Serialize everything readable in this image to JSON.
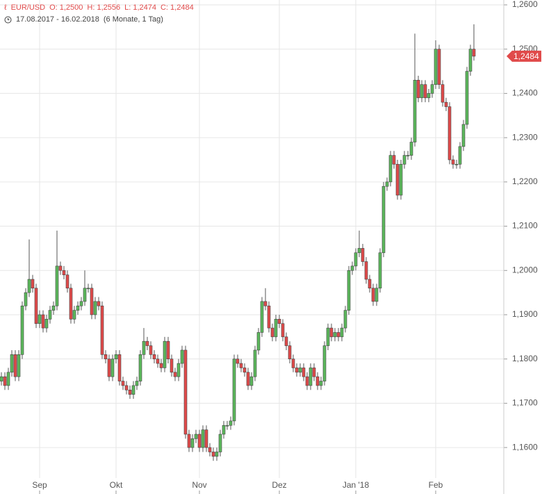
{
  "chart_data": {
    "type": "candlestick",
    "header": {
      "symbol": "EUR/USD",
      "fields": [
        "O: 1,2500",
        "H: 1,2556",
        "L: 1,2474",
        "C: 1,2484"
      ],
      "range": "17.08.2017 - 16.02.2018",
      "period": "(6 Monate, 1 Tag)"
    },
    "last_label": "1,2484",
    "up_color": "#5cb85c",
    "down_color": "#e04a4a",
    "ylim": [
      1.1495,
      1.2611
    ],
    "yticks": [
      {
        "value": 1.16,
        "label": "1,1600"
      },
      {
        "value": 1.17,
        "label": "1,1700"
      },
      {
        "value": 1.18,
        "label": "1,1800"
      },
      {
        "value": 1.19,
        "label": "1,1900"
      },
      {
        "value": 1.2,
        "label": "1,2000"
      },
      {
        "value": 1.21,
        "label": "1,2100"
      },
      {
        "value": 1.22,
        "label": "1,2200"
      },
      {
        "value": 1.23,
        "label": "1,2300"
      },
      {
        "value": 1.24,
        "label": "1,2400"
      },
      {
        "value": 1.25,
        "label": "1,2500"
      },
      {
        "value": 1.26,
        "label": "1,2600"
      }
    ],
    "xticks": [
      {
        "value": 11,
        "label": "Sep"
      },
      {
        "value": 33,
        "label": "Okt"
      },
      {
        "value": 57,
        "label": "Nov"
      },
      {
        "value": 80,
        "label": "Dez"
      },
      {
        "value": 102,
        "label": "Jan '18"
      },
      {
        "value": 125,
        "label": "Feb"
      }
    ],
    "grid": true,
    "open": [
      1.175,
      1.176,
      1.174,
      1.177,
      1.181,
      1.176,
      1.181,
      1.192,
      1.195,
      1.198,
      1.196,
      1.188,
      1.19,
      1.187,
      1.189,
      1.191,
      1.192,
      1.201,
      1.2,
      1.199,
      1.196,
      1.189,
      1.191,
      1.192,
      1.193,
      1.196,
      1.196,
      1.19,
      1.193,
      1.192,
      1.181,
      1.18,
      1.176,
      1.18,
      1.181,
      1.175,
      1.174,
      1.173,
      1.172,
      1.174,
      1.175,
      1.181,
      1.184,
      1.183,
      1.181,
      1.18,
      1.179,
      1.178,
      1.184,
      1.18,
      1.177,
      1.176,
      1.179,
      1.182,
      1.163,
      1.16,
      1.162,
      1.163,
      1.16,
      1.164,
      1.16,
      1.159,
      1.158,
      1.159,
      1.163,
      1.165,
      1.165,
      1.166,
      1.18,
      1.179,
      1.178,
      1.177,
      1.174,
      1.176,
      1.182,
      1.186,
      1.193,
      1.192,
      1.187,
      1.185,
      1.189,
      1.188,
      1.185,
      1.183,
      1.18,
      1.178,
      1.177,
      1.178,
      1.176,
      1.174,
      1.178,
      1.176,
      1.174,
      1.175,
      1.183,
      1.187,
      1.185,
      1.186,
      1.185,
      1.187,
      1.191,
      1.2,
      1.201,
      1.204,
      1.205,
      1.202,
      1.198,
      1.196,
      1.193,
      1.196,
      1.204,
      1.219,
      1.22,
      1.226,
      1.224,
      1.217,
      1.224,
      1.226,
      1.226,
      1.229,
      1.243,
      1.239,
      1.242,
      1.239,
      1.24,
      1.242,
      1.25,
      1.242,
      1.238,
      1.237,
      1.225,
      1.224,
      1.224,
      1.228,
      1.233,
      1.245,
      1.25
    ],
    "high": [
      1.177,
      1.177,
      1.178,
      1.182,
      1.182,
      1.182,
      1.193,
      1.196,
      1.207,
      1.199,
      1.197,
      1.191,
      1.191,
      1.19,
      1.192,
      1.193,
      1.209,
      1.202,
      1.201,
      1.2,
      1.197,
      1.192,
      1.193,
      1.194,
      1.2,
      1.197,
      1.197,
      1.194,
      1.194,
      1.193,
      1.182,
      1.181,
      1.181,
      1.182,
      1.182,
      1.176,
      1.175,
      1.174,
      1.175,
      1.176,
      1.182,
      1.187,
      1.185,
      1.184,
      1.182,
      1.181,
      1.18,
      1.185,
      1.185,
      1.181,
      1.178,
      1.18,
      1.183,
      1.183,
      1.164,
      1.163,
      1.164,
      1.164,
      1.165,
      1.165,
      1.161,
      1.16,
      1.16,
      1.164,
      1.166,
      1.166,
      1.167,
      1.181,
      1.181,
      1.18,
      1.179,
      1.178,
      1.177,
      1.183,
      1.187,
      1.194,
      1.196,
      1.193,
      1.188,
      1.19,
      1.19,
      1.189,
      1.186,
      1.184,
      1.181,
      1.179,
      1.179,
      1.179,
      1.177,
      1.179,
      1.179,
      1.177,
      1.176,
      1.184,
      1.188,
      1.188,
      1.187,
      1.187,
      1.188,
      1.192,
      1.201,
      1.202,
      1.205,
      1.209,
      1.206,
      1.203,
      1.199,
      1.197,
      1.197,
      1.205,
      1.22,
      1.221,
      1.227,
      1.227,
      1.225,
      1.225,
      1.227,
      1.227,
      1.23,
      1.2535,
      1.244,
      1.243,
      1.243,
      1.241,
      1.243,
      1.252,
      1.251,
      1.243,
      1.239,
      1.238,
      1.226,
      1.225,
      1.229,
      1.234,
      1.246,
      1.251,
      1.2556
    ],
    "low": [
      1.174,
      1.173,
      1.173,
      1.176,
      1.175,
      1.175,
      1.18,
      1.191,
      1.194,
      1.195,
      1.187,
      1.187,
      1.186,
      1.186,
      1.188,
      1.19,
      1.191,
      1.199,
      1.198,
      1.195,
      1.188,
      1.188,
      1.19,
      1.191,
      1.192,
      1.195,
      1.189,
      1.189,
      1.191,
      1.18,
      1.179,
      1.175,
      1.175,
      1.179,
      1.174,
      1.173,
      1.172,
      1.171,
      1.171,
      1.173,
      1.174,
      1.18,
      1.182,
      1.18,
      1.179,
      1.178,
      1.177,
      1.177,
      1.179,
      1.176,
      1.175,
      1.175,
      1.178,
      1.162,
      1.159,
      1.159,
      1.161,
      1.159,
      1.159,
      1.159,
      1.158,
      1.157,
      1.157,
      1.158,
      1.162,
      1.164,
      1.164,
      1.165,
      1.178,
      1.177,
      1.176,
      1.173,
      1.173,
      1.175,
      1.181,
      1.185,
      1.191,
      1.186,
      1.184,
      1.184,
      1.187,
      1.184,
      1.182,
      1.179,
      1.177,
      1.176,
      1.176,
      1.175,
      1.173,
      1.173,
      1.175,
      1.173,
      1.173,
      1.174,
      1.182,
      1.184,
      1.184,
      1.184,
      1.184,
      1.186,
      1.19,
      1.199,
      1.2,
      1.203,
      1.201,
      1.197,
      1.195,
      1.192,
      1.192,
      1.195,
      1.203,
      1.218,
      1.219,
      1.223,
      1.216,
      1.216,
      1.223,
      1.225,
      1.225,
      1.228,
      1.238,
      1.238,
      1.238,
      1.238,
      1.239,
      1.241,
      1.241,
      1.237,
      1.236,
      1.224,
      1.223,
      1.223,
      1.223,
      1.227,
      1.232,
      1.244,
      1.2474
    ],
    "close": [
      1.176,
      1.174,
      1.177,
      1.181,
      1.176,
      1.181,
      1.192,
      1.195,
      1.198,
      1.196,
      1.188,
      1.19,
      1.187,
      1.189,
      1.191,
      1.192,
      1.201,
      1.2,
      1.199,
      1.196,
      1.189,
      1.191,
      1.192,
      1.193,
      1.196,
      1.196,
      1.19,
      1.193,
      1.192,
      1.181,
      1.18,
      1.176,
      1.18,
      1.181,
      1.175,
      1.174,
      1.173,
      1.172,
      1.174,
      1.175,
      1.181,
      1.184,
      1.183,
      1.181,
      1.18,
      1.179,
      1.178,
      1.184,
      1.18,
      1.177,
      1.176,
      1.179,
      1.182,
      1.163,
      1.16,
      1.162,
      1.163,
      1.16,
      1.164,
      1.16,
      1.159,
      1.158,
      1.159,
      1.163,
      1.165,
      1.165,
      1.166,
      1.18,
      1.179,
      1.178,
      1.177,
      1.174,
      1.176,
      1.182,
      1.186,
      1.193,
      1.192,
      1.187,
      1.185,
      1.189,
      1.188,
      1.185,
      1.183,
      1.18,
      1.178,
      1.177,
      1.178,
      1.176,
      1.174,
      1.178,
      1.176,
      1.174,
      1.175,
      1.183,
      1.187,
      1.185,
      1.186,
      1.185,
      1.187,
      1.191,
      1.2,
      1.201,
      1.204,
      1.205,
      1.202,
      1.198,
      1.196,
      1.193,
      1.196,
      1.204,
      1.219,
      1.22,
      1.226,
      1.224,
      1.217,
      1.224,
      1.226,
      1.226,
      1.229,
      1.243,
      1.239,
      1.242,
      1.239,
      1.24,
      1.242,
      1.25,
      1.242,
      1.238,
      1.237,
      1.225,
      1.224,
      1.224,
      1.228,
      1.233,
      1.245,
      1.25,
      1.2484
    ]
  }
}
